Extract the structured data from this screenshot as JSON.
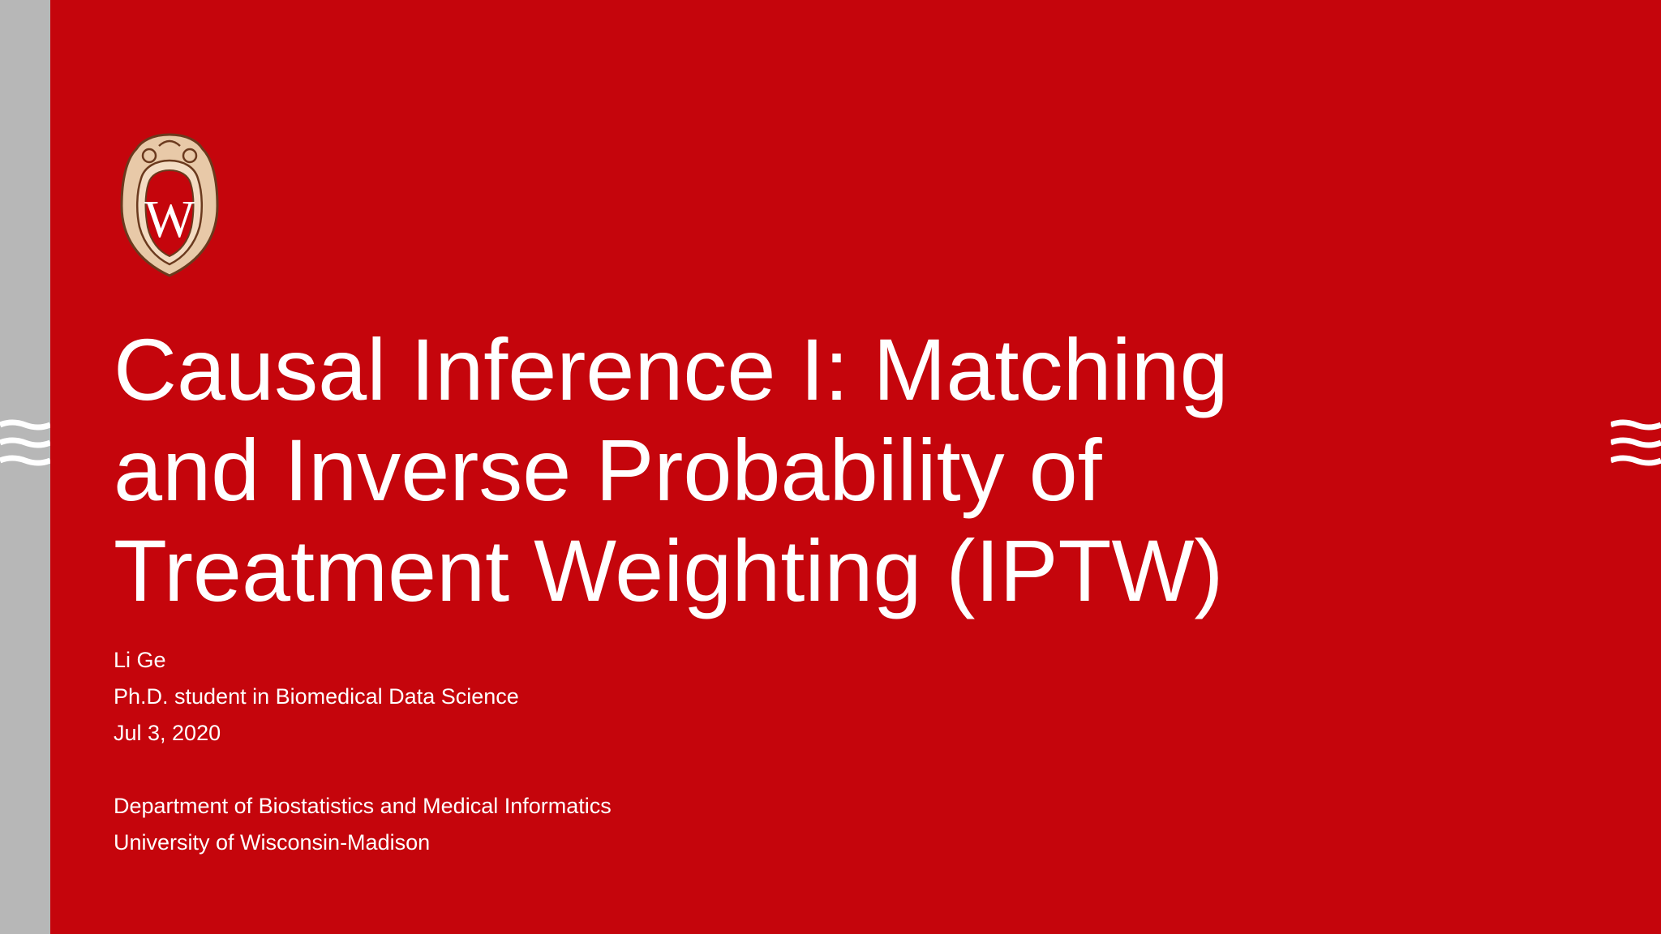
{
  "slide": {
    "background_color": "#c5050c",
    "band_color": "#b7b7b7",
    "title_lines": [
      "Causal Inference I: Matching",
      "and Inverse Probability of",
      "Treatment Weighting (IPTW)"
    ],
    "author": "Li Ge",
    "role": "Ph.D. student in Biomedical Data Science",
    "date": "Jul 3, 2020",
    "department": "Department of Biostatistics and Medical Informatics",
    "university": "University of Wisconsin-Madison",
    "logo": {
      "icon": "uw-crest-icon",
      "letter": "W"
    },
    "decorations": [
      "wave-left-icon",
      "wave-right-icon"
    ]
  }
}
